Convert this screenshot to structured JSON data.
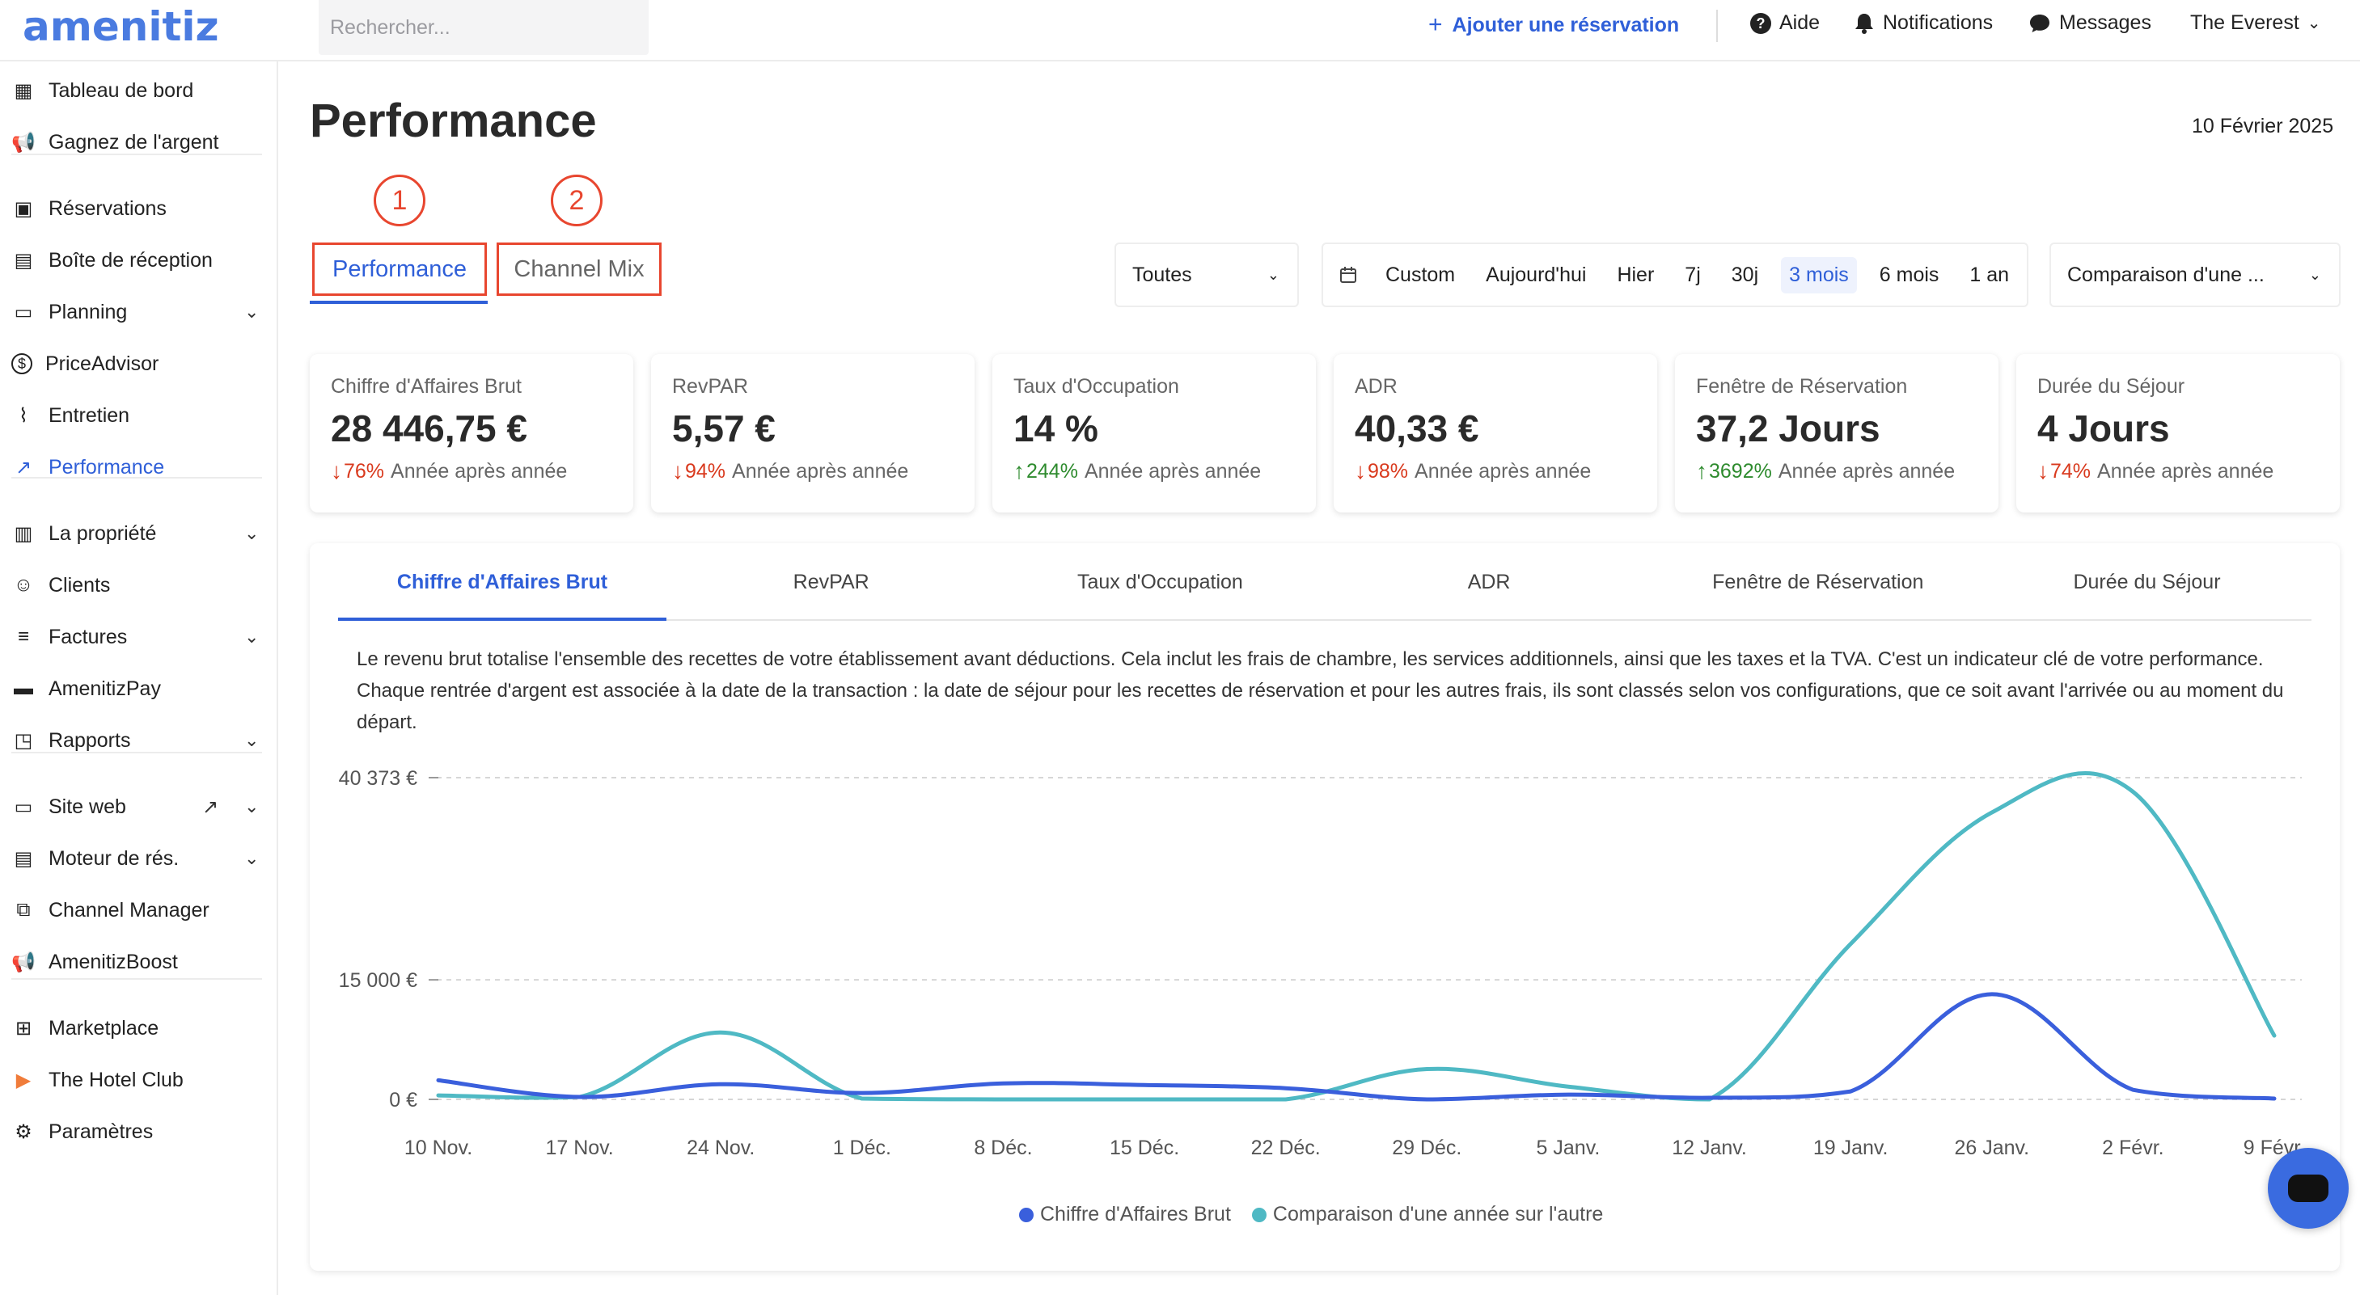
{
  "topbar": {
    "logo": "amenitiz",
    "search_placeholder": "Rechercher...",
    "add_reservation": "Ajouter une réservation",
    "help": "Aide",
    "notifications": "Notifications",
    "messages": "Messages",
    "property": "The Everest"
  },
  "sidebar": {
    "items": [
      {
        "label": "Tableau de bord",
        "icon": "dashboard-icon"
      },
      {
        "label": "Gagnez de l'argent",
        "icon": "megaphone-icon"
      },
      {
        "label": "Réservations",
        "icon": "suitcase-icon"
      },
      {
        "label": "Boîte de réception",
        "icon": "inbox-icon"
      },
      {
        "label": "Planning",
        "icon": "calendar-icon"
      },
      {
        "label": "PriceAdvisor",
        "icon": "dollar-icon"
      },
      {
        "label": "Entretien",
        "icon": "broom-icon"
      },
      {
        "label": "Performance",
        "icon": "trend-icon"
      },
      {
        "label": "La propriété",
        "icon": "building-icon"
      },
      {
        "label": "Clients",
        "icon": "users-icon"
      },
      {
        "label": "Factures",
        "icon": "invoice-icon"
      },
      {
        "label": "AmenitizPay",
        "icon": "card-icon"
      },
      {
        "label": "Rapports",
        "icon": "report-icon"
      },
      {
        "label": "Site web",
        "icon": "browser-icon"
      },
      {
        "label": "Moteur de rés.",
        "icon": "booking-engine-icon"
      },
      {
        "label": "Channel Manager",
        "icon": "channel-icon"
      },
      {
        "label": "AmenitizBoost",
        "icon": "megaphone-icon"
      },
      {
        "label": "Marketplace",
        "icon": "grid-plus-icon"
      },
      {
        "label": "The Hotel Club",
        "icon": "play-icon"
      },
      {
        "label": "Paramètres",
        "icon": "gear-icon"
      }
    ]
  },
  "header": {
    "title": "Performance",
    "date": "10 Février 2025"
  },
  "annotations": [
    "1",
    "2"
  ],
  "tabs": [
    "Performance",
    "Channel Mix"
  ],
  "filters": {
    "channel_select": "Toutes",
    "ranges": [
      "Custom",
      "Aujourd'hui",
      "Hier",
      "7j",
      "30j",
      "3 mois",
      "6 mois",
      "1 an"
    ],
    "active_range": "3 mois",
    "comparison_select": "Comparaison d'une ..."
  },
  "kpis": [
    {
      "label": "Chiffre d'Affaires Brut",
      "value": "28 446,75 €",
      "pct": "76%",
      "dir": "down",
      "suffix": "Année après année"
    },
    {
      "label": "RevPAR",
      "value": "5,57 €",
      "pct": "94%",
      "dir": "down",
      "suffix": "Année après année"
    },
    {
      "label": "Taux d'Occupation",
      "value": "14 %",
      "pct": "244%",
      "dir": "up",
      "suffix": "Année après année"
    },
    {
      "label": "ADR",
      "value": "40,33 €",
      "pct": "98%",
      "dir": "down",
      "suffix": "Année après année"
    },
    {
      "label": "Fenêtre de Réservation",
      "value": "37,2 Jours",
      "pct": "3692%",
      "dir": "up",
      "suffix": "Année après année"
    },
    {
      "label": "Durée du Séjour",
      "value": "4 Jours",
      "pct": "74%",
      "dir": "down",
      "suffix": "Année après année"
    }
  ],
  "chart_tabs": [
    "Chiffre d'Affaires Brut",
    "RevPAR",
    "Taux d'Occupation",
    "ADR",
    "Fenêtre de Réservation",
    "Durée du Séjour"
  ],
  "description": "Le revenu brut totalise l'ensemble des recettes de votre établissement avant déductions. Cela inclut les frais de chambre, les services additionnels, ainsi que les taxes et la TVA. C'est un indicateur clé de votre performance. Chaque rentrée d'argent est associée à la date de la transaction : la date de séjour pour les recettes de réservation et pour les autres frais, ils sont classés selon vos configurations, que ce soit avant l'arrivée ou au moment du départ.",
  "colors": {
    "accent": "#2f5fd8",
    "series1": "#3a5fdc",
    "series2": "#4fb9c4",
    "annotation": "#e8462f"
  },
  "chart_data": {
    "type": "line",
    "x": [
      "10 Nov.",
      "17 Nov.",
      "24 Nov.",
      "1 Déc.",
      "8 Déc.",
      "15 Déc.",
      "22 Déc.",
      "29 Déc.",
      "5 Janv.",
      "12 Janv.",
      "19 Janv.",
      "26 Janv.",
      "2 Févr.",
      "9 Févr."
    ],
    "yticks": [
      {
        "value": 0,
        "label": "0 €"
      },
      {
        "value": 15000,
        "label": "15 000 €"
      },
      {
        "value": 40373,
        "label": "40 373 €"
      }
    ],
    "ylim": [
      0,
      40373
    ],
    "grid": true,
    "legend": "bottom-center",
    "series": [
      {
        "name": "Chiffre d'Affaires Brut",
        "color": "#3a5fdc",
        "values": [
          2400,
          300,
          1900,
          800,
          2000,
          1800,
          1400,
          0,
          600,
          200,
          1000,
          13200,
          1200,
          100
        ]
      },
      {
        "name": "Comparaison d'une année sur l'autre",
        "color": "#4fb9c4",
        "values": [
          500,
          300,
          8400,
          100,
          0,
          0,
          0,
          3800,
          1600,
          0,
          19500,
          36000,
          38600,
          8000
        ]
      }
    ]
  }
}
